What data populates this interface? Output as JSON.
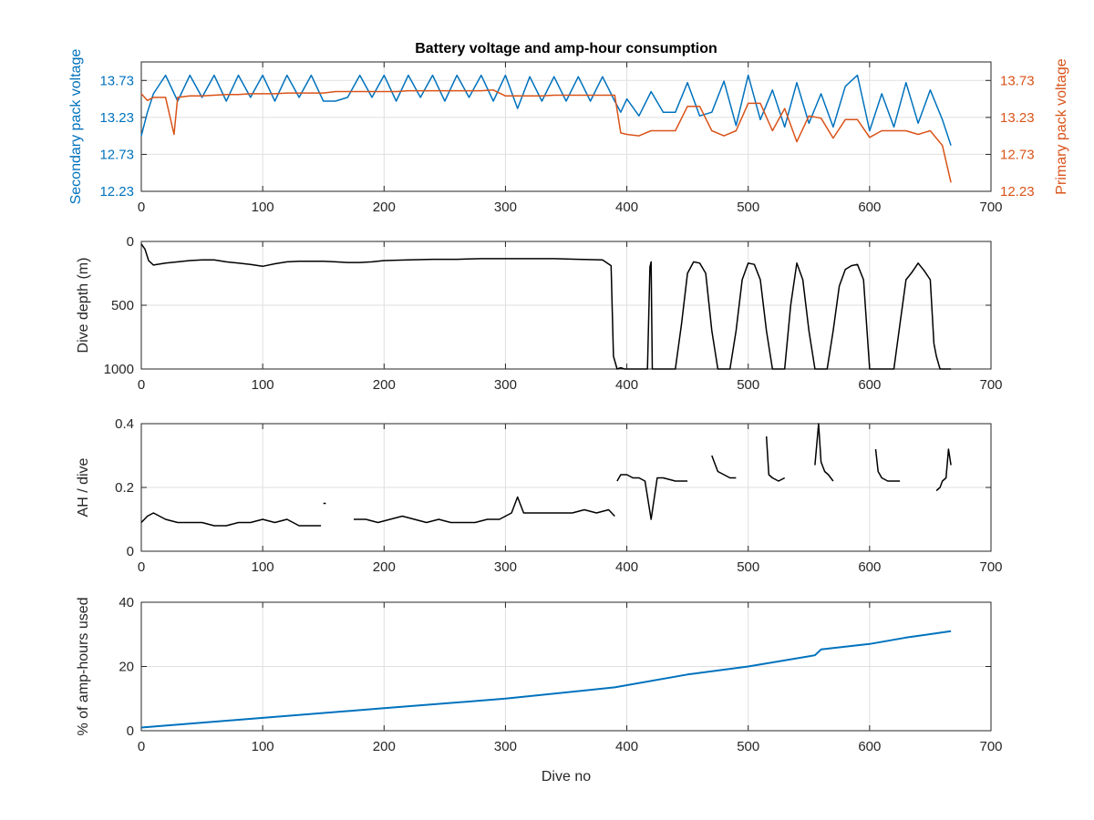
{
  "chart_data": [
    {
      "type": "line",
      "title": "Battery voltage and amp-hour consumption",
      "xlabel": "",
      "ylabel": "Secondary pack voltage",
      "ylabel_right": "Primary pack voltage",
      "xlim": [
        0,
        700
      ],
      "ylim": [
        12.23,
        13.98
      ],
      "ylim_right": [
        12.23,
        13.98
      ],
      "xticks": [
        "0",
        "100",
        "200",
        "300",
        "400",
        "500",
        "600",
        "700"
      ],
      "yticks": [
        "12.23",
        "12.73",
        "13.23",
        "13.73"
      ],
      "yticks_right": [
        "12.23",
        "12.73",
        "13.23",
        "13.73"
      ],
      "grid": true,
      "colors": {
        "left": "#0072bd",
        "right": "#d95319"
      },
      "series": [
        {
          "axis": "left",
          "x": [
            0,
            5,
            10,
            20,
            30,
            40,
            50,
            60,
            70,
            80,
            90,
            100,
            110,
            120,
            130,
            140,
            150,
            160,
            170,
            180,
            190,
            200,
            210,
            220,
            230,
            240,
            250,
            260,
            270,
            280,
            290,
            300,
            310,
            320,
            330,
            340,
            350,
            360,
            370,
            380,
            390,
            395,
            400,
            410,
            420,
            430,
            440,
            450,
            460,
            470,
            480,
            490,
            500,
            510,
            520,
            530,
            540,
            550,
            560,
            570,
            580,
            590,
            600,
            610,
            620,
            630,
            640,
            650,
            660,
            667
          ],
          "y": [
            12.98,
            13.3,
            13.55,
            13.8,
            13.45,
            13.8,
            13.5,
            13.8,
            13.45,
            13.8,
            13.5,
            13.8,
            13.45,
            13.8,
            13.5,
            13.8,
            13.45,
            13.45,
            13.5,
            13.8,
            13.5,
            13.8,
            13.45,
            13.8,
            13.5,
            13.8,
            13.45,
            13.8,
            13.5,
            13.8,
            13.45,
            13.8,
            13.35,
            13.78,
            13.45,
            13.78,
            13.45,
            13.78,
            13.45,
            13.78,
            13.45,
            13.3,
            13.48,
            13.25,
            13.58,
            13.3,
            13.3,
            13.7,
            13.25,
            13.3,
            13.72,
            13.12,
            13.8,
            13.2,
            13.6,
            13.1,
            13.7,
            13.15,
            13.55,
            13.1,
            13.65,
            13.8,
            13.05,
            13.55,
            13.1,
            13.7,
            13.15,
            13.6,
            13.2,
            12.85
          ]
        },
        {
          "axis": "right",
          "x": [
            0,
            5,
            10,
            20,
            27,
            30,
            40,
            50,
            60,
            70,
            80,
            90,
            100,
            110,
            120,
            130,
            140,
            150,
            160,
            170,
            180,
            190,
            200,
            210,
            220,
            230,
            240,
            250,
            260,
            270,
            280,
            290,
            300,
            310,
            320,
            330,
            340,
            350,
            360,
            370,
            380,
            390,
            395,
            400,
            410,
            420,
            430,
            440,
            450,
            460,
            470,
            480,
            490,
            500,
            510,
            520,
            530,
            540,
            550,
            560,
            570,
            580,
            590,
            600,
            610,
            620,
            630,
            640,
            650,
            660,
            667
          ],
          "y": [
            13.55,
            13.46,
            13.5,
            13.5,
            13.0,
            13.5,
            13.52,
            13.52,
            13.53,
            13.54,
            13.54,
            13.55,
            13.55,
            13.55,
            13.56,
            13.56,
            13.56,
            13.56,
            13.58,
            13.58,
            13.58,
            13.58,
            13.58,
            13.58,
            13.59,
            13.59,
            13.59,
            13.59,
            13.59,
            13.59,
            13.59,
            13.6,
            13.52,
            13.52,
            13.52,
            13.52,
            13.53,
            13.53,
            13.53,
            13.53,
            13.53,
            13.53,
            13.02,
            13.0,
            12.98,
            13.05,
            13.05,
            13.05,
            13.38,
            13.38,
            13.05,
            12.98,
            13.05,
            13.42,
            13.42,
            13.05,
            13.35,
            12.9,
            13.25,
            13.22,
            12.95,
            13.2,
            13.2,
            12.96,
            13.05,
            13.05,
            13.05,
            13.0,
            13.05,
            12.85,
            12.35
          ]
        }
      ]
    },
    {
      "type": "line",
      "title": "",
      "xlabel": "",
      "ylabel": "Dive depth (m)",
      "xlim": [
        0,
        700
      ],
      "ylim": [
        0,
        1000
      ],
      "y_reversed": true,
      "xticks": [
        "0",
        "100",
        "200",
        "300",
        "400",
        "500",
        "600",
        "700"
      ],
      "yticks": [
        "0",
        "500",
        "1000"
      ],
      "grid": true,
      "colors": {
        "line": "#000000"
      },
      "series": [
        {
          "x": [
            0,
            3,
            6,
            10,
            20,
            30,
            40,
            50,
            60,
            70,
            80,
            90,
            100,
            110,
            120,
            130,
            140,
            150,
            160,
            170,
            180,
            190,
            200,
            220,
            240,
            260,
            280,
            300,
            320,
            340,
            360,
            380,
            387,
            389,
            392,
            395,
            398,
            400,
            410,
            417,
            419,
            420,
            421,
            423,
            430,
            440,
            445,
            450,
            455,
            460,
            465,
            470,
            475,
            480,
            485,
            490,
            495,
            500,
            505,
            510,
            515,
            520,
            525,
            530,
            535,
            540,
            545,
            550,
            555,
            560,
            565,
            570,
            575,
            580,
            585,
            590,
            595,
            600,
            610,
            620,
            625,
            630,
            635,
            640,
            645,
            650,
            653,
            655,
            658,
            660,
            667
          ],
          "y": [
            20,
            60,
            150,
            185,
            170,
            160,
            150,
            145,
            145,
            160,
            170,
            180,
            195,
            175,
            160,
            155,
            155,
            155,
            160,
            165,
            165,
            160,
            150,
            145,
            140,
            140,
            135,
            135,
            135,
            135,
            140,
            145,
            190,
            900,
            1000,
            990,
            1000,
            1000,
            1000,
            1000,
            200,
            160,
            1000,
            1000,
            1000,
            1000,
            650,
            250,
            160,
            170,
            250,
            700,
            1000,
            1000,
            1000,
            700,
            300,
            170,
            180,
            300,
            700,
            1000,
            1000,
            1000,
            500,
            170,
            300,
            700,
            1000,
            1000,
            1000,
            700,
            350,
            220,
            190,
            180,
            300,
            1000,
            1000,
            1000,
            650,
            300,
            240,
            170,
            230,
            300,
            800,
            900,
            1000,
            1000,
            1000
          ]
        }
      ]
    },
    {
      "type": "line",
      "title": "",
      "xlabel": "",
      "ylabel": "AH / dive",
      "xlim": [
        0,
        700
      ],
      "ylim": [
        0,
        0.4
      ],
      "xticks": [
        "0",
        "100",
        "200",
        "300",
        "400",
        "500",
        "600",
        "700"
      ],
      "yticks": [
        "0",
        "0.2",
        "0.4"
      ],
      "grid": true,
      "colors": {
        "line": "#000000"
      },
      "series": [
        {
          "x": [
            0,
            5,
            10,
            20,
            30,
            40,
            50,
            60,
            70,
            80,
            90,
            100,
            110,
            120,
            130,
            140,
            148
          ],
          "y": [
            0.09,
            0.11,
            0.12,
            0.1,
            0.09,
            0.09,
            0.09,
            0.08,
            0.08,
            0.09,
            0.09,
            0.1,
            0.09,
            0.1,
            0.08,
            0.08,
            0.08
          ]
        },
        {
          "x": [
            150,
            152
          ],
          "y": [
            0.15,
            0.15
          ]
        },
        {
          "x": [
            175,
            185,
            195,
            205,
            215,
            225,
            235,
            245,
            255,
            265,
            275,
            285,
            295,
            305,
            310,
            315,
            325,
            335,
            345,
            355,
            365,
            375,
            385,
            390
          ],
          "y": [
            0.1,
            0.1,
            0.09,
            0.1,
            0.11,
            0.1,
            0.09,
            0.1,
            0.09,
            0.09,
            0.09,
            0.1,
            0.1,
            0.12,
            0.17,
            0.12,
            0.12,
            0.12,
            0.12,
            0.12,
            0.13,
            0.12,
            0.13,
            0.11
          ]
        },
        {
          "x": [
            392,
            395,
            400,
            405,
            410,
            415,
            420,
            425,
            430,
            440,
            450
          ],
          "y": [
            0.22,
            0.24,
            0.24,
            0.23,
            0.23,
            0.22,
            0.1,
            0.23,
            0.23,
            0.22,
            0.22
          ]
        },
        {
          "x": [
            470,
            472,
            475,
            480,
            485,
            490
          ],
          "y": [
            0.3,
            0.28,
            0.25,
            0.24,
            0.23,
            0.23
          ]
        },
        {
          "x": [
            515,
            517,
            520,
            525,
            530
          ],
          "y": [
            0.36,
            0.24,
            0.23,
            0.22,
            0.23
          ]
        },
        {
          "x": [
            555,
            558,
            560,
            563,
            566,
            570
          ],
          "y": [
            0.27,
            0.4,
            0.28,
            0.25,
            0.24,
            0.22
          ]
        },
        {
          "x": [
            605,
            607,
            610,
            615,
            620,
            625
          ],
          "y": [
            0.32,
            0.25,
            0.23,
            0.22,
            0.22,
            0.22
          ]
        },
        {
          "x": [
            655,
            658,
            660,
            663,
            665,
            667
          ],
          "y": [
            0.19,
            0.2,
            0.22,
            0.23,
            0.32,
            0.27
          ]
        }
      ]
    },
    {
      "type": "line",
      "title": "",
      "xlabel": "Dive no",
      "ylabel": "% of amp-hours used",
      "xlim": [
        0,
        700
      ],
      "ylim": [
        0,
        40
      ],
      "xticks": [
        "0",
        "100",
        "200",
        "300",
        "400",
        "500",
        "600",
        "700"
      ],
      "yticks": [
        "0",
        "20",
        "40"
      ],
      "grid": true,
      "colors": {
        "line": "#0072bd"
      },
      "series": [
        {
          "x": [
            0,
            100,
            200,
            300,
            390,
            450,
            500,
            555,
            560,
            600,
            630,
            667
          ],
          "y": [
            1,
            4,
            7,
            10,
            13.5,
            17.5,
            20,
            23.5,
            25.3,
            27,
            29,
            31
          ]
        }
      ]
    }
  ]
}
